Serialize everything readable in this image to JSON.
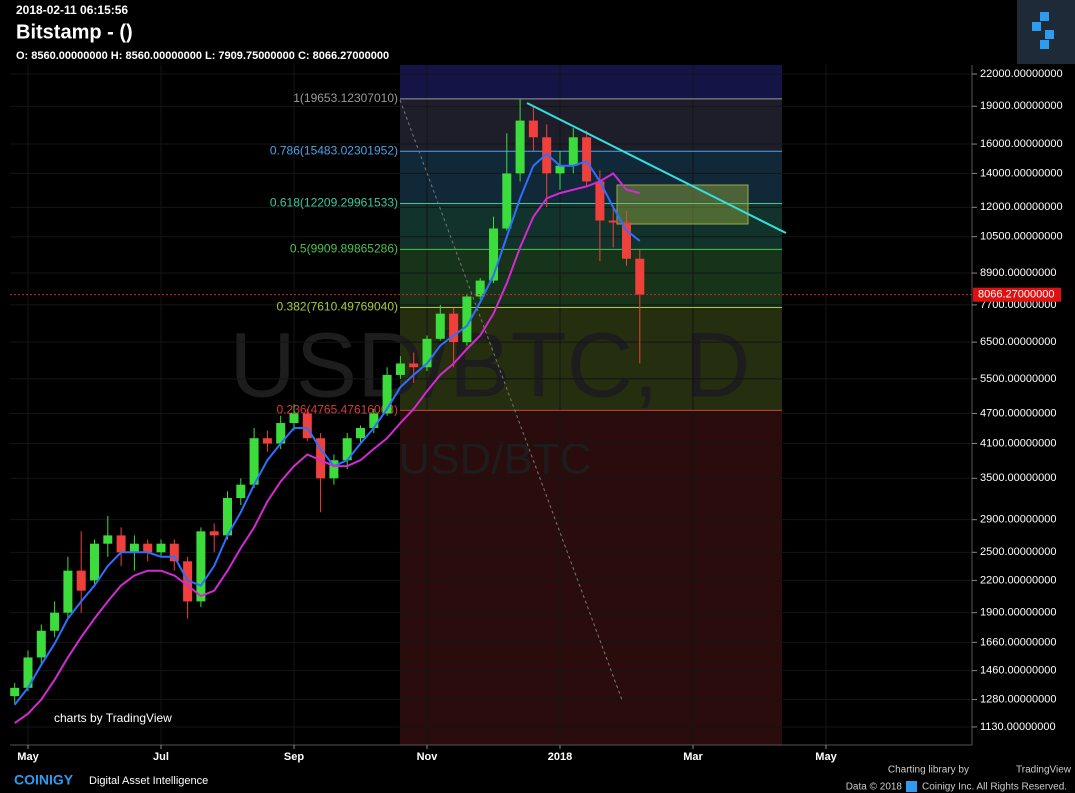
{
  "header": {
    "timestamp": "2018-02-11 06:15:56",
    "title": "Bitstamp -  ()",
    "ohlc": "O: 8560.00000000 H: 8560.00000000 L: 7909.75000000 C: 8066.27000000"
  },
  "footer": {
    "brand": "COINIGY",
    "tagline": "Digital Asset Intelligence",
    "charting_library": "Charting library by",
    "tradingview": "TradingView",
    "copyright": "Data © 2018",
    "rights": "Coinigy Inc. All Rights Reserved.",
    "charts_by": "charts by TradingView"
  },
  "chart_data": {
    "type": "candlestick",
    "watermark": "USD/BTC, D",
    "watermark_small": "USD/BTC",
    "log_scale": true,
    "grid": true,
    "up_color": "#3ddc3d",
    "down_color": "#f0403c",
    "categories": [
      null,
      "May",
      null,
      null,
      null,
      null,
      null,
      null,
      null,
      null,
      null,
      "Jul",
      null,
      null,
      null,
      null,
      null,
      null,
      null,
      null,
      null,
      "Sep",
      null,
      null,
      null,
      null,
      null,
      null,
      null,
      null,
      null,
      "Nov",
      null,
      null,
      null,
      null,
      null,
      null,
      null,
      null,
      null,
      "2018",
      null,
      null,
      null,
      null,
      null,
      null,
      null,
      null,
      null,
      "Mar",
      null,
      null,
      null,
      null,
      null,
      null,
      null,
      null,
      null,
      "May"
    ],
    "open": [
      1300,
      1350,
      1550,
      1750,
      1900,
      2300,
      2200,
      2600,
      2700,
      2500,
      2600,
      2500,
      2600,
      2400,
      2000,
      2750,
      2700,
      3200,
      3400,
      4200,
      4100,
      4500,
      4700,
      4200,
      3500,
      3800,
      4200,
      4400,
      4700,
      5600,
      5900,
      5800,
      6600,
      7400,
      6500,
      8000,
      8600,
      10900,
      14000,
      17800,
      16500,
      14000,
      14500,
      16500,
      13500,
      11300,
      11200,
      9500,
      null,
      null,
      null,
      null,
      null,
      null,
      null,
      null,
      null,
      null,
      null,
      null,
      null,
      null
    ],
    "high": [
      1380,
      1600,
      1800,
      2000,
      2450,
      2750,
      2650,
      2950,
      2800,
      2700,
      2650,
      2650,
      2650,
      2450,
      2800,
      2850,
      3300,
      3500,
      4400,
      4350,
      4650,
      4900,
      4800,
      4300,
      3900,
      4300,
      4450,
      4800,
      5800,
      6100,
      6200,
      6700,
      7700,
      7600,
      8100,
      8700,
      11500,
      16800,
      19653,
      19000,
      17500,
      15500,
      17200,
      17000,
      14200,
      12000,
      11800,
      9900,
      null,
      null,
      null,
      null,
      null,
      null,
      null,
      null,
      null,
      null,
      null,
      null,
      null,
      null
    ],
    "low": [
      1250,
      1330,
      1500,
      1700,
      1850,
      1900,
      2150,
      2450,
      2350,
      2300,
      2400,
      2450,
      2300,
      1850,
      1950,
      2500,
      2650,
      3100,
      3350,
      3950,
      4000,
      4350,
      4150,
      3000,
      3400,
      3650,
      4100,
      4300,
      4650,
      5500,
      5400,
      5700,
      6550,
      5800,
      6400,
      7900,
      8500,
      10800,
      13500,
      15500,
      12000,
      13000,
      14000,
      13200,
      9400,
      10000,
      9200,
      5900,
      null,
      null,
      null,
      null,
      null,
      null,
      null,
      null,
      null,
      null,
      null,
      null,
      null,
      null
    ],
    "close": [
      1350,
      1550,
      1750,
      1900,
      2300,
      2100,
      2600,
      2700,
      2500,
      2600,
      2500,
      2600,
      2400,
      2000,
      2750,
      2700,
      3200,
      3400,
      4200,
      4100,
      4500,
      4700,
      4200,
      3500,
      3800,
      4200,
      4400,
      4700,
      5600,
      5900,
      5800,
      6600,
      7400,
      6500,
      8000,
      8600,
      10900,
      14000,
      17800,
      16500,
      14000,
      14500,
      16500,
      13500,
      11300,
      11200,
      9500,
      8066,
      null,
      null,
      null,
      null,
      null,
      null,
      null,
      null,
      null,
      null,
      null,
      null,
      null,
      null
    ],
    "series": [
      {
        "color": "#2f6fff",
        "values": [
          1250,
          1350,
          1500,
          1650,
          1850,
          2000,
          2150,
          2350,
          2500,
          2500,
          2500,
          2450,
          2450,
          2200,
          2150,
          2350,
          2700,
          3000,
          3400,
          3800,
          4100,
          4400,
          4400,
          4000,
          3700,
          3800,
          4100,
          4400,
          4800,
          5300,
          5600,
          5900,
          6400,
          6700,
          7000,
          7800,
          8800,
          10500,
          12500,
          14500,
          15300,
          14500,
          14500,
          14800,
          13500,
          12000,
          10800,
          10300,
          null,
          null,
          null,
          null,
          null,
          null,
          null,
          null,
          null,
          null,
          null,
          null,
          null,
          null
        ]
      },
      {
        "color": "#d42ad4",
        "values": [
          1150,
          1200,
          1280,
          1400,
          1550,
          1700,
          1850,
          2000,
          2150,
          2250,
          2300,
          2300,
          2250,
          2150,
          2050,
          2100,
          2300,
          2550,
          2800,
          3150,
          3450,
          3700,
          3900,
          3800,
          3700,
          3700,
          3800,
          4000,
          4200,
          4500,
          4800,
          5200,
          5600,
          5900,
          6300,
          6700,
          7400,
          8500,
          10000,
          11500,
          12500,
          12800,
          13000,
          13200,
          13500,
          14000,
          13000,
          12800,
          null,
          null,
          null,
          null,
          null,
          null,
          null,
          null,
          null,
          null,
          null,
          null,
          null,
          null
        ]
      }
    ],
    "fib_levels": [
      {
        "label": "1(19653.12307010)",
        "value": 19653.1230701,
        "color": "#9a9a9a"
      },
      {
        "label": "0.786(15483.02301952)",
        "value": 15483.02301952,
        "color": "#4aa3e8"
      },
      {
        "label": "0.618(12209.29961533)",
        "value": 12209.29961533,
        "color": "#38c9a0"
      },
      {
        "label": "0.5(9909.89865286)",
        "value": 9909.89865286,
        "color": "#4cc24c"
      },
      {
        "label": "0.382(7610.49769040)",
        "value": 7610.4976904,
        "color": "#a8c93a"
      },
      {
        "label": "0.236(4765.47616068)",
        "value": 4765.47616068,
        "color": "#d93a3a"
      }
    ],
    "last_price": {
      "value": 8066.27,
      "label": "8066.27000000"
    },
    "ylim": [
      1041,
      22920
    ],
    "yticks": [
      {
        "value": 22000,
        "label": "22000.00000000"
      },
      {
        "value": 19000,
        "label": "19000.00000000"
      },
      {
        "value": 16000,
        "label": "16000.00000000"
      },
      {
        "value": 14000,
        "label": "14000.00000000"
      },
      {
        "value": 12000,
        "label": "12000.00000000"
      },
      {
        "value": 10500,
        "label": "10500.00000000"
      },
      {
        "value": 8900,
        "label": "8900.00000000"
      },
      {
        "value": 7700,
        "label": "7700.00000000"
      },
      {
        "value": 6500,
        "label": "6500.00000000"
      },
      {
        "value": 5500,
        "label": "5500.00000000"
      },
      {
        "value": 4700,
        "label": "4700.00000000"
      },
      {
        "value": 4100,
        "label": "4100.00000000"
      },
      {
        "value": 3500,
        "label": "3500.00000000"
      },
      {
        "value": 2900,
        "label": "2900.00000000"
      },
      {
        "value": 2500,
        "label": "2500.00000000"
      },
      {
        "value": 2200,
        "label": "2200.00000000"
      },
      {
        "value": 1900,
        "label": "1900.00000000"
      },
      {
        "value": 1660,
        "label": "1660.00000000"
      },
      {
        "value": 1460,
        "label": "1460.00000000"
      },
      {
        "value": 1280,
        "label": "1280.00000000"
      },
      {
        "value": 1130,
        "label": "1130.00000000"
      }
    ]
  }
}
